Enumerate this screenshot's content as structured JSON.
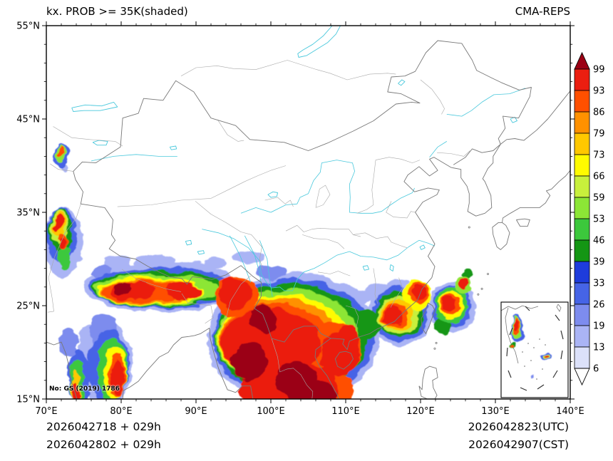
{
  "header": {
    "title": "kx. PROB >= 35K(shaded)",
    "model": "CMA-REPS"
  },
  "map": {
    "note": "No: GS (2019) 1786",
    "lon_tick_labels": [
      "70°E",
      "80°E",
      "90°E",
      "100°E",
      "110°E",
      "120°E",
      "130°E",
      "140°E"
    ],
    "lat_tick_labels": [
      "55°N",
      "45°N",
      "35°N",
      "25°N",
      "15°N"
    ]
  },
  "colorbar": {
    "labels": [
      "99",
      "93",
      "86",
      "79",
      "73",
      "66",
      "59",
      "53",
      "46",
      "39",
      "33",
      "26",
      "19",
      "13",
      "6"
    ],
    "segment_colors": [
      "#eb1e10",
      "#ff5000",
      "#ff9100",
      "#ffc800",
      "#fffb00",
      "#c8f03c",
      "#8ce636",
      "#3cc83c",
      "#149614",
      "#1e3cdc",
      "#4664e6",
      "#7d8cee",
      "#aab4f5",
      "#dce1fa"
    ],
    "over_color": "#9b0014",
    "under_color": "#ffffff"
  },
  "footer": {
    "left_line1": "2026042718 + 029h",
    "left_line2": "2026042802 + 029h",
    "right_line1": "2026042823(UTC)",
    "right_line2": "2026042907(CST)"
  },
  "chart_data": {
    "type": "heatmap",
    "title": "kx. PROB >= 35K(shaded)",
    "model": "CMA-REPS",
    "field": "probability (%) that K index >= 35K, shaded",
    "x_axis": {
      "label": "longitude",
      "range": [
        70,
        140
      ],
      "major_tick_interval": 10,
      "minor_tick_interval": 2
    },
    "y_axis": {
      "label": "latitude",
      "range": [
        15,
        55
      ],
      "major_tick_interval": 10,
      "minor_tick_interval": 2
    },
    "levels": [
      6,
      13,
      19,
      26,
      33,
      39,
      46,
      53,
      59,
      66,
      73,
      79,
      86,
      93,
      99
    ],
    "level_colors": {
      "6": "#dce1fa",
      "13": "#aab4f5",
      "19": "#7d8cee",
      "26": "#4664e6",
      "33": "#1e3cdc",
      "39": "#149614",
      "46": "#3cc83c",
      "53": "#8ce636",
      "59": "#c8f03c",
      "66": "#fffb00",
      "73": "#ffc800",
      "79": "#ff9100",
      "86": "#ff5000",
      "93": "#eb1e10",
      "99": "#9b0014"
    },
    "shaded_blobs": [
      [
        72.0,
        41.0,
        1.1,
        1.3,
        26
      ],
      [
        71.9,
        41.2,
        0.7,
        0.85,
        53
      ],
      [
        71.9,
        41.4,
        0.4,
        0.5,
        86
      ],
      [
        72.7,
        39.8,
        0.5,
        0.5,
        13
      ],
      [
        72.2,
        31.8,
        2.7,
        3.8,
        13
      ],
      [
        72.0,
        32.6,
        2.0,
        3.0,
        26
      ],
      [
        71.9,
        33.1,
        1.5,
        2.4,
        39
      ],
      [
        71.8,
        33.5,
        1.15,
        1.9,
        59
      ],
      [
        71.8,
        33.8,
        0.85,
        1.4,
        73
      ],
      [
        71.7,
        34.0,
        0.6,
        0.95,
        93
      ],
      [
        72.1,
        31.9,
        0.55,
        0.85,
        86
      ],
      [
        72.0,
        31.7,
        0.4,
        0.6,
        93
      ],
      [
        72.5,
        30.0,
        0.9,
        1.3,
        46
      ],
      [
        73.6,
        30.3,
        1.2,
        1.0,
        13
      ],
      [
        85.5,
        27.0,
        10.5,
        2.7,
        13
      ],
      [
        85.5,
        26.9,
        9.8,
        2.2,
        26
      ],
      [
        85.0,
        26.8,
        9.0,
        1.9,
        39
      ],
      [
        84.5,
        26.7,
        8.2,
        1.65,
        53
      ],
      [
        84.0,
        26.6,
        7.4,
        1.45,
        66
      ],
      [
        83.5,
        26.5,
        6.6,
        1.25,
        79
      ],
      [
        83.0,
        26.5,
        5.8,
        1.1,
        86
      ],
      [
        81.5,
        26.6,
        3.0,
        0.95,
        93
      ],
      [
        88.5,
        26.6,
        2.6,
        0.9,
        93
      ],
      [
        80.3,
        26.8,
        1.5,
        0.7,
        99
      ],
      [
        79.5,
        29.4,
        2.0,
        0.75,
        13
      ],
      [
        84.5,
        29.8,
        2.6,
        0.7,
        13
      ],
      [
        89.5,
        29.2,
        2.0,
        0.6,
        13
      ],
      [
        77.3,
        28.6,
        1.4,
        0.7,
        19
      ],
      [
        92.5,
        29.6,
        1.5,
        0.6,
        13
      ],
      [
        77.8,
        18.8,
        3.6,
        4.6,
        13
      ],
      [
        78.3,
        18.5,
        2.7,
        3.9,
        26
      ],
      [
        78.8,
        18.2,
        2.0,
        3.3,
        46
      ],
      [
        79.2,
        17.9,
        1.5,
        2.8,
        66
      ],
      [
        79.5,
        17.6,
        1.1,
        2.3,
        86
      ],
      [
        79.6,
        17.4,
        0.8,
        1.9,
        93
      ],
      [
        74.4,
        17.3,
        1.5,
        3.0,
        26
      ],
      [
        74.1,
        16.8,
        1.0,
        2.3,
        46
      ],
      [
        73.9,
        16.2,
        0.65,
        1.7,
        73
      ],
      [
        73.9,
        15.6,
        0.5,
        1.0,
        93
      ],
      [
        75.9,
        21.6,
        1.6,
        1.5,
        13
      ],
      [
        73.0,
        21.0,
        1.3,
        1.5,
        19
      ],
      [
        77.5,
        22.0,
        1.8,
        2.2,
        19
      ],
      [
        103.0,
        21.5,
        11.5,
        7.0,
        13
      ],
      [
        103.0,
        21.5,
        10.8,
        6.4,
        26
      ],
      [
        102.7,
        21.5,
        10.2,
        5.9,
        39
      ],
      [
        102.2,
        21.4,
        9.5,
        5.4,
        53
      ],
      [
        101.7,
        21.3,
        8.8,
        4.9,
        66
      ],
      [
        101.2,
        21.2,
        8.1,
        4.5,
        79
      ],
      [
        100.6,
        21.1,
        7.4,
        4.1,
        86
      ],
      [
        100.0,
        21.0,
        6.7,
        3.7,
        93
      ],
      [
        97.0,
        19.0,
        2.4,
        2.0,
        99
      ],
      [
        103.5,
        17.0,
        2.6,
        2.2,
        99
      ],
      [
        99.0,
        23.5,
        1.8,
        1.5,
        99
      ],
      [
        105.5,
        15.5,
        3.0,
        1.5,
        99
      ],
      [
        104.0,
        16.5,
        5.0,
        2.5,
        93
      ],
      [
        99.0,
        16.0,
        3.2,
        2.0,
        93
      ],
      [
        108.0,
        16.0,
        3.0,
        2.0,
        86
      ],
      [
        95.4,
        26.1,
        2.9,
        2.2,
        86
      ],
      [
        95.2,
        26.3,
        2.2,
        1.7,
        93
      ],
      [
        95.0,
        27.2,
        1.5,
        1.0,
        93
      ],
      [
        108.6,
        20.3,
        3.4,
        3.0,
        86
      ],
      [
        109.2,
        19.8,
        2.6,
        2.4,
        93
      ],
      [
        110.2,
        21.3,
        1.5,
        1.6,
        93
      ],
      [
        104.5,
        27.6,
        3.6,
        0.9,
        13
      ],
      [
        109.0,
        26.6,
        2.6,
        0.85,
        13
      ],
      [
        112.0,
        26.0,
        2.1,
        0.8,
        13
      ],
      [
        100.0,
        28.6,
        2.1,
        0.8,
        19
      ],
      [
        97.0,
        30.2,
        2.0,
        0.7,
        13
      ],
      [
        112.5,
        23.0,
        2.1,
        1.6,
        39
      ],
      [
        117.4,
        24.2,
        4.3,
        3.4,
        13
      ],
      [
        117.3,
        24.1,
        3.7,
        2.9,
        26
      ],
      [
        117.2,
        24.1,
        3.2,
        2.45,
        39
      ],
      [
        117.0,
        24.0,
        2.7,
        2.05,
        59
      ],
      [
        116.8,
        24.0,
        2.2,
        1.7,
        73
      ],
      [
        116.6,
        23.9,
        1.75,
        1.35,
        86
      ],
      [
        116.4,
        23.9,
        1.35,
        1.05,
        93
      ],
      [
        119.6,
        26.2,
        1.9,
        1.6,
        66
      ],
      [
        119.8,
        26.4,
        1.4,
        1.2,
        86
      ],
      [
        119.9,
        26.5,
        1.0,
        0.9,
        93
      ],
      [
        114.4,
        26.6,
        1.6,
        0.85,
        13
      ],
      [
        124.3,
        24.9,
        3.1,
        2.7,
        13
      ],
      [
        124.2,
        24.9,
        2.6,
        2.25,
        26
      ],
      [
        124.1,
        25.0,
        2.2,
        1.9,
        46
      ],
      [
        124.0,
        25.0,
        1.8,
        1.55,
        66
      ],
      [
        123.9,
        25.1,
        1.45,
        1.25,
        86
      ],
      [
        123.8,
        25.2,
        1.1,
        0.95,
        93
      ],
      [
        125.6,
        27.2,
        1.0,
        0.9,
        53
      ],
      [
        125.7,
        27.35,
        0.6,
        0.55,
        93
      ],
      [
        123.0,
        22.8,
        1.1,
        1.0,
        39
      ],
      [
        126.3,
        28.3,
        0.7,
        0.6,
        39
      ]
    ],
    "inset_blobs": [
      [
        22,
        38,
        8,
        20,
        26
      ],
      [
        21,
        36,
        6,
        15,
        53
      ],
      [
        21,
        34,
        4.5,
        11,
        86
      ],
      [
        20,
        32,
        3,
        7,
        93
      ],
      [
        17,
        62,
        3.5,
        5,
        39
      ],
      [
        17,
        63,
        2,
        3,
        86
      ],
      [
        63,
        76,
        9,
        5,
        26
      ],
      [
        63,
        76,
        6.5,
        3.5,
        59
      ],
      [
        63,
        76,
        4.5,
        2.2,
        93
      ],
      [
        45,
        104,
        2.5,
        2.5,
        19
      ]
    ]
  }
}
